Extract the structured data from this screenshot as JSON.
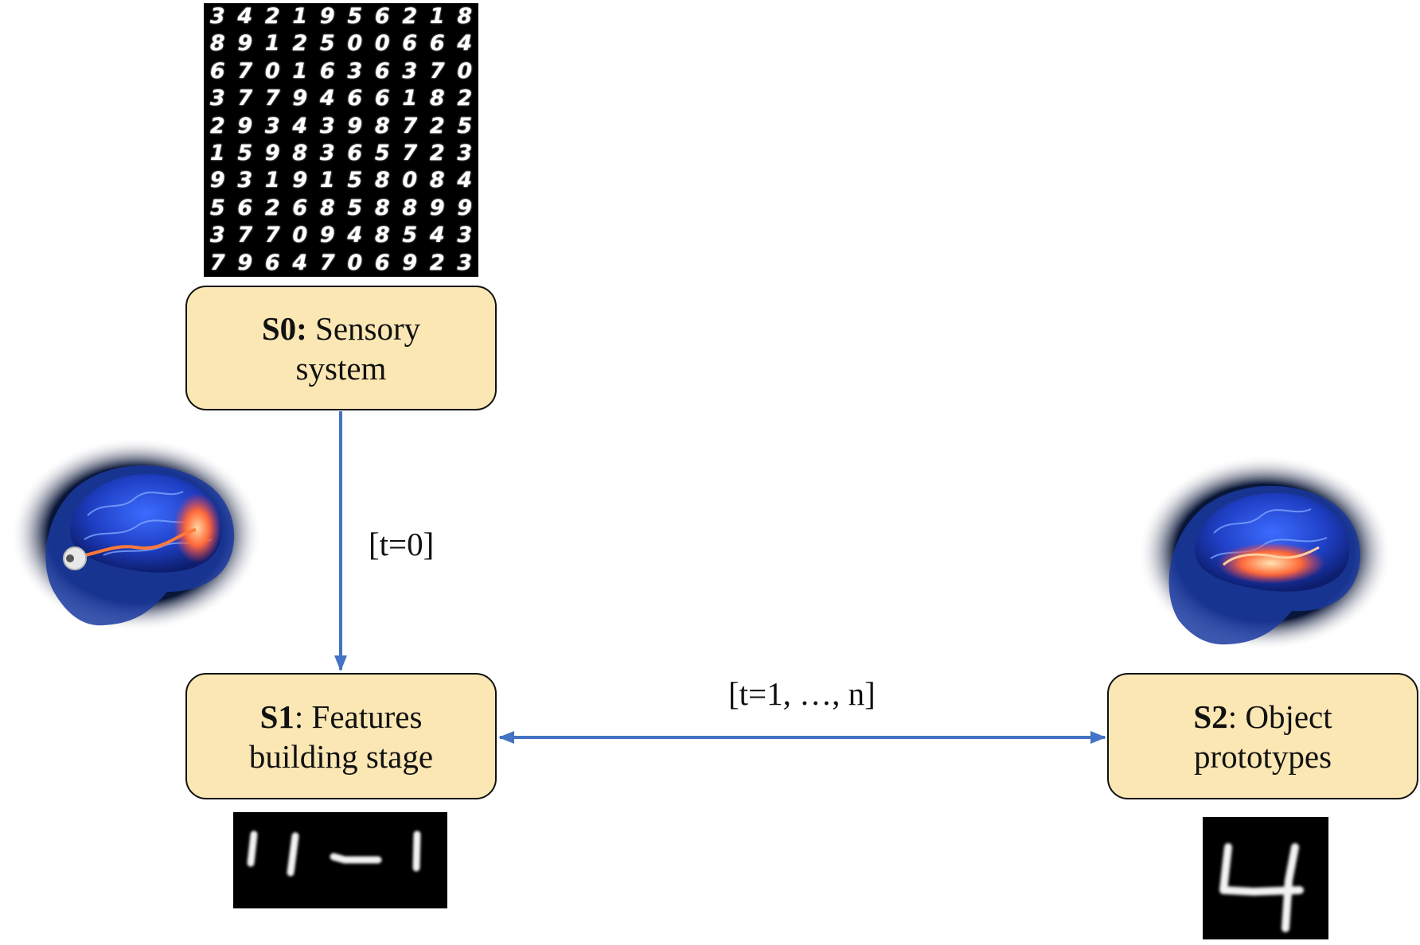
{
  "nodes": [
    {
      "id": "s0",
      "key": "S0:",
      "text_line1": " Sensory",
      "text_line2": "system"
    },
    {
      "id": "s1",
      "key": "S1",
      "text_line1": ": Features",
      "text_line2": "building stage"
    },
    {
      "id": "s2",
      "key": "S2",
      "text_line1": ": Object",
      "text_line2": "prototypes"
    }
  ],
  "edges": [
    {
      "from": "s0",
      "to": "s1",
      "label": "[t=0]",
      "direction": "one-way"
    },
    {
      "from": "s1",
      "to": "s2",
      "label": "[t=1, …, n]",
      "direction": "two-way"
    }
  ],
  "colors": {
    "box_fill": "#fbe7b4",
    "box_border": "#111111",
    "arrow": "#4472c4",
    "panel_background": "#000000"
  },
  "mnist_grid_digits": [
    "3",
    "4",
    "2",
    "1",
    "9",
    "5",
    "6",
    "2",
    "1",
    "8",
    "8",
    "9",
    "1",
    "2",
    "5",
    "0",
    "0",
    "6",
    "6",
    "4",
    "6",
    "7",
    "0",
    "1",
    "6",
    "3",
    "6",
    "3",
    "7",
    "0",
    "3",
    "7",
    "7",
    "9",
    "4",
    "6",
    "6",
    "1",
    "8",
    "2",
    "2",
    "9",
    "3",
    "4",
    "3",
    "9",
    "8",
    "7",
    "2",
    "5",
    "1",
    "5",
    "9",
    "8",
    "3",
    "6",
    "5",
    "7",
    "2",
    "3",
    "9",
    "3",
    "1",
    "9",
    "1",
    "5",
    "8",
    "0",
    "8",
    "4",
    "5",
    "6",
    "2",
    "6",
    "8",
    "5",
    "8",
    "8",
    "9",
    "9",
    "3",
    "7",
    "7",
    "0",
    "9",
    "4",
    "8",
    "5",
    "4",
    "3",
    "7",
    "9",
    "6",
    "4",
    "7",
    "0",
    "6",
    "9",
    "2",
    "3"
  ],
  "illustrations": {
    "visual_pathway": "brain-visual-pathway-illustration",
    "memory_region": "brain-memory-region-illustration",
    "feature_strokes": "digit-stroke-features",
    "prototype": "digit-four-prototype"
  }
}
